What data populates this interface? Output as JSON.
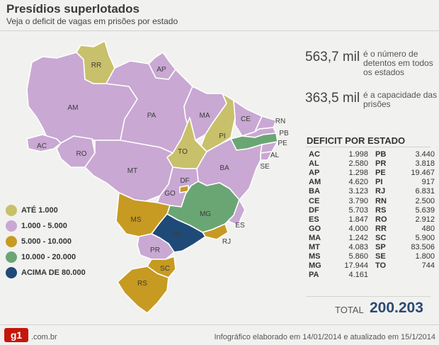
{
  "header": {
    "title": "Presídios superlotados",
    "subtitle": "Veja o deficit de vagas em prisões por estado"
  },
  "stats": [
    {
      "value": "563,7 mil",
      "description": "é o número de detentos em todos os estados"
    },
    {
      "value": "363,5 mil",
      "description": "é a capacidade das prisões"
    }
  ],
  "deficit": {
    "title": "DEFICIT POR ESTADO",
    "left_column": [
      {
        "state": "AC",
        "value": "1.998"
      },
      {
        "state": "AL",
        "value": "2.580"
      },
      {
        "state": "AP",
        "value": "1.298"
      },
      {
        "state": "AM",
        "value": "4.620"
      },
      {
        "state": "BA",
        "value": "3.123"
      },
      {
        "state": "CE",
        "value": "3.790"
      },
      {
        "state": "DF",
        "value": "5.703"
      },
      {
        "state": "ES",
        "value": "1.847"
      },
      {
        "state": "GO",
        "value": "4.000"
      },
      {
        "state": "MA",
        "value": "1.242"
      },
      {
        "state": "MT",
        "value": "4.083"
      },
      {
        "state": "MS",
        "value": "5.860"
      },
      {
        "state": "MG",
        "value": "17.944"
      },
      {
        "state": "PA",
        "value": "4.161"
      }
    ],
    "right_column": [
      {
        "state": "PB",
        "value": "3.440"
      },
      {
        "state": "PR",
        "value": "3.818"
      },
      {
        "state": "PE",
        "value": "19.467"
      },
      {
        "state": "PI",
        "value": "917"
      },
      {
        "state": "RJ",
        "value": "6.831"
      },
      {
        "state": "RN",
        "value": "2.500"
      },
      {
        "state": "RS",
        "value": "5.639"
      },
      {
        "state": "RO",
        "value": "2.912"
      },
      {
        "state": "RR",
        "value": "480"
      },
      {
        "state": "SC",
        "value": "5.900"
      },
      {
        "state": "SP",
        "value": "83.506"
      },
      {
        "state": "SE",
        "value": "1.800"
      },
      {
        "state": "TO",
        "value": "744"
      }
    ],
    "total_label": "TOTAL",
    "total_value": "200.203"
  },
  "legend": [
    {
      "label": "ATÉ 1.000",
      "color": "#c8c06a"
    },
    {
      "label": "1.000 - 5.000",
      "color": "#c9a8d3"
    },
    {
      "label": "5.000 - 10.000",
      "color": "#c79a22"
    },
    {
      "label": "10.000 - 20.000",
      "color": "#6aa673"
    },
    {
      "label": "ACIMA DE 80.000",
      "color": "#1f4a77"
    }
  ],
  "map_states": [
    {
      "code": "RR",
      "category": "ATÉ 1.000"
    },
    {
      "code": "AP",
      "category": "1.000 - 5.000"
    },
    {
      "code": "AM",
      "category": "1.000 - 5.000"
    },
    {
      "code": "PA",
      "category": "1.000 - 5.000"
    },
    {
      "code": "MA",
      "category": "1.000 - 5.000"
    },
    {
      "code": "AC",
      "category": "1.000 - 5.000"
    },
    {
      "code": "RO",
      "category": "1.000 - 5.000"
    },
    {
      "code": "MT",
      "category": "1.000 - 5.000"
    },
    {
      "code": "TO",
      "category": "ATÉ 1.000"
    },
    {
      "code": "PI",
      "category": "ATÉ 1.000"
    },
    {
      "code": "CE",
      "category": "1.000 - 5.000"
    },
    {
      "code": "RN",
      "category": "1.000 - 5.000"
    },
    {
      "code": "PB",
      "category": "1.000 - 5.000"
    },
    {
      "code": "PE",
      "category": "10.000 - 20.000"
    },
    {
      "code": "AL",
      "category": "1.000 - 5.000"
    },
    {
      "code": "SE",
      "category": "1.000 - 5.000"
    },
    {
      "code": "BA",
      "category": "1.000 - 5.000"
    },
    {
      "code": "GO",
      "category": "1.000 - 5.000"
    },
    {
      "code": "DF",
      "category": "5.000 - 10.000"
    },
    {
      "code": "MG",
      "category": "10.000 - 20.000"
    },
    {
      "code": "ES",
      "category": "1.000 - 5.000"
    },
    {
      "code": "RJ",
      "category": "5.000 - 10.000"
    },
    {
      "code": "SP",
      "category": "ACIMA DE 80.000"
    },
    {
      "code": "MS",
      "category": "5.000 - 10.000"
    },
    {
      "code": "PR",
      "category": "1.000 - 5.000"
    },
    {
      "code": "SC",
      "category": "5.000 - 10.000"
    },
    {
      "code": "RS",
      "category": "5.000 - 10.000"
    }
  ],
  "footer": {
    "logo_text": "g1",
    "domain": ".com.br",
    "credit": "Infográfico elaborado em 14/01/2014 e atualizado em 15/1/2014"
  }
}
